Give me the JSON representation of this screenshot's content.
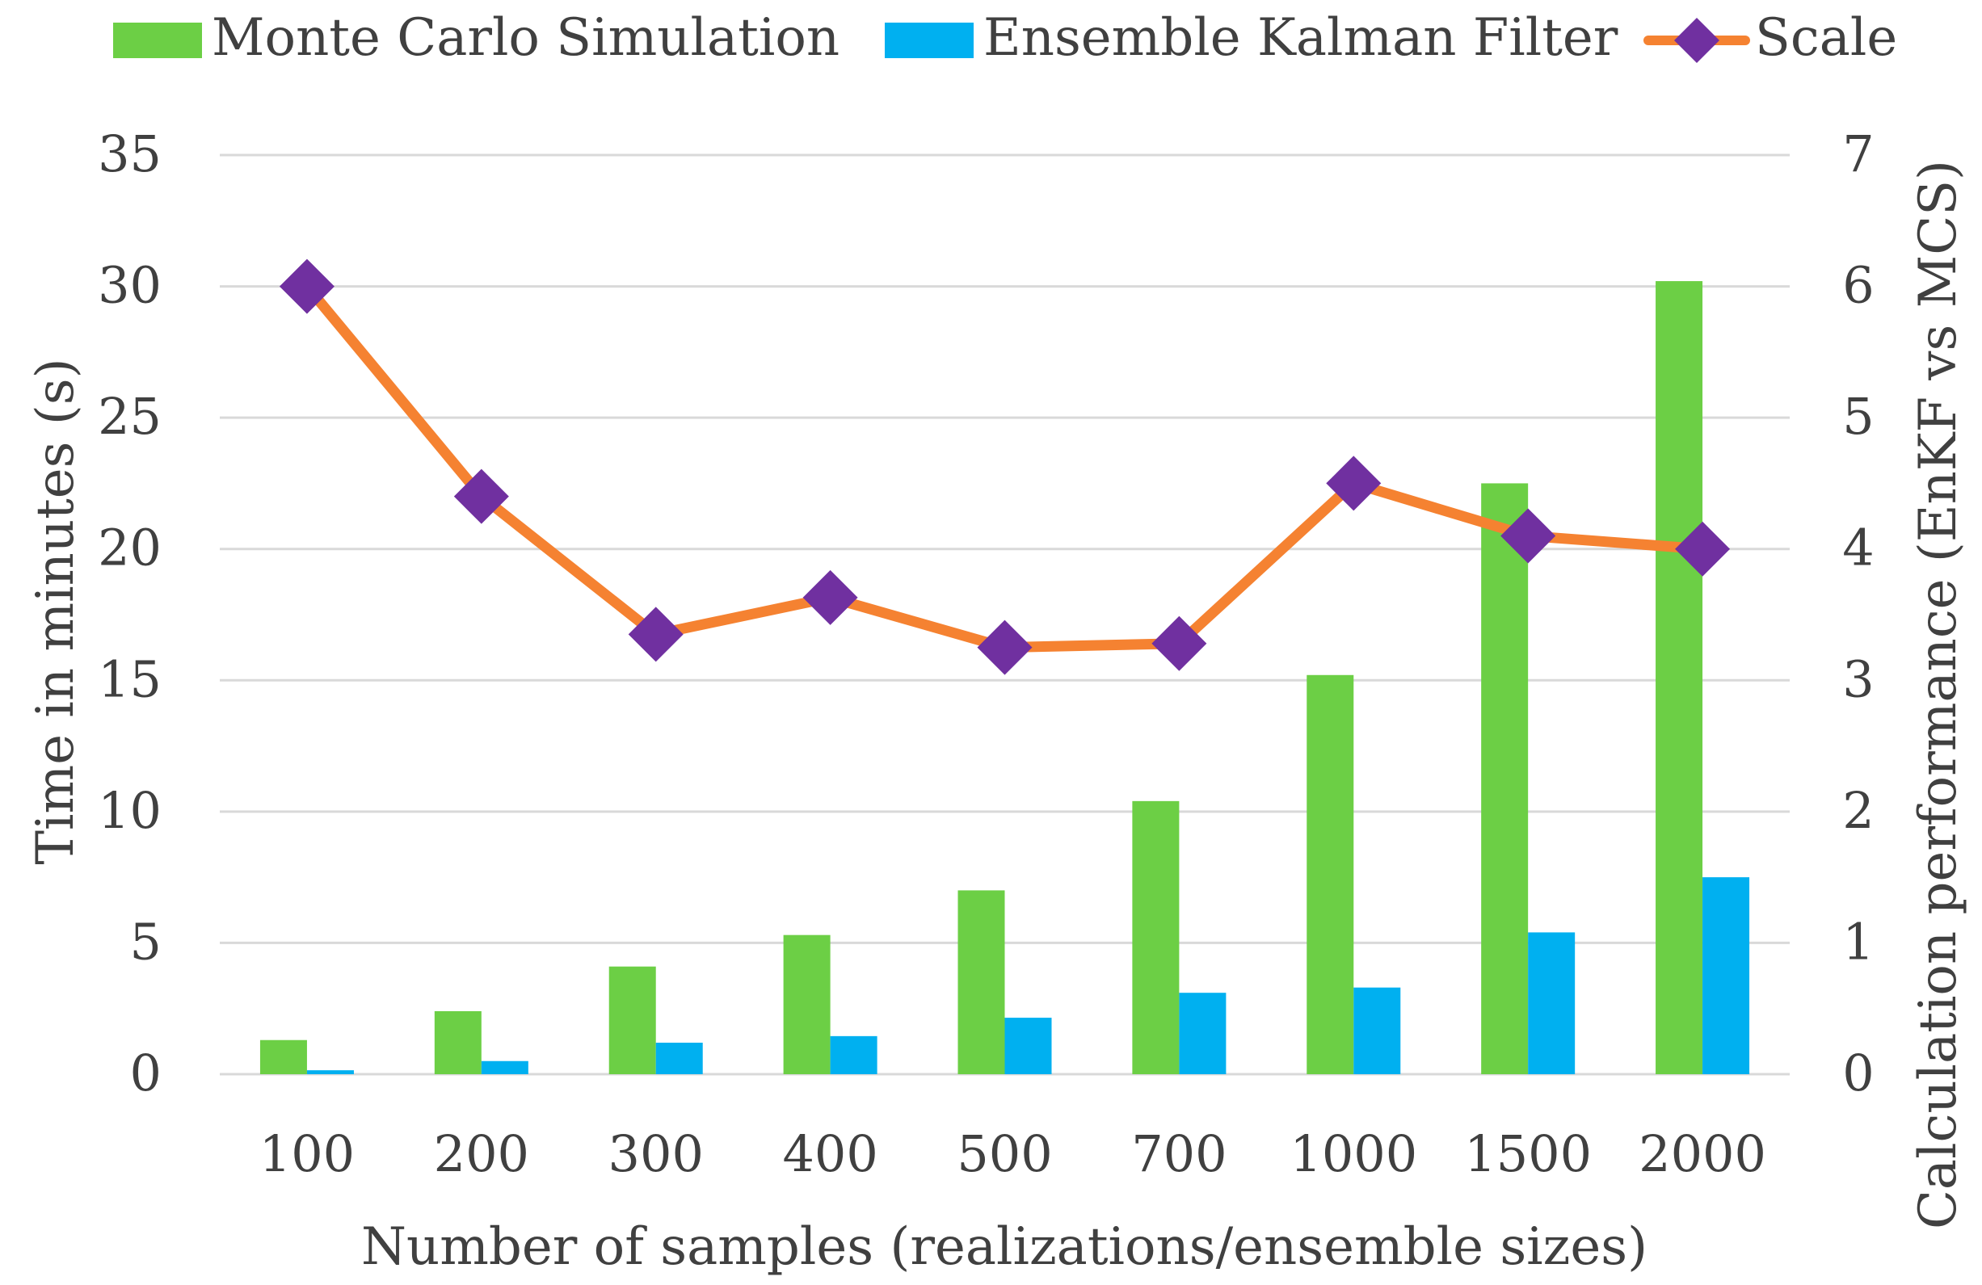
{
  "chart_data": {
    "type": "bar",
    "title": "",
    "categories": [
      "100",
      "200",
      "300",
      "400",
      "500",
      "700",
      "1000",
      "1500",
      "2000"
    ],
    "series": [
      {
        "name": "Monte Carlo Simulation",
        "type": "bar",
        "axis": "left",
        "color": "#6ccf45",
        "values": [
          1.3,
          2.4,
          4.1,
          5.3,
          7.0,
          10.4,
          15.2,
          22.5,
          30.2
        ]
      },
      {
        "name": "Ensemble Kalman Filter",
        "type": "bar",
        "axis": "left",
        "color": "#00b0f0",
        "values": [
          0.15,
          0.5,
          1.2,
          1.45,
          2.15,
          3.1,
          3.3,
          5.4,
          7.5
        ]
      },
      {
        "name": "Scale",
        "type": "line",
        "axis": "right",
        "color": "#f58231",
        "marker_color": "#7030a0",
        "values": [
          6.0,
          4.4,
          3.35,
          3.63,
          3.25,
          3.28,
          4.5,
          4.1,
          4.0
        ]
      }
    ],
    "xlabel": "Number of samples (realizations/ensemble sizes)",
    "ylabel": "Time in minutes (s)",
    "y2label": "Calculation performance (EnKF vs MCS)",
    "ylim": [
      0,
      35
    ],
    "y2lim": [
      0,
      7
    ],
    "yticks": [
      "0",
      "5",
      "10",
      "15",
      "20",
      "25",
      "30",
      "35"
    ],
    "y2ticks": [
      "0",
      "1",
      "2",
      "3",
      "4",
      "5",
      "6",
      "7"
    ],
    "grid": true,
    "legend_position": "top"
  }
}
